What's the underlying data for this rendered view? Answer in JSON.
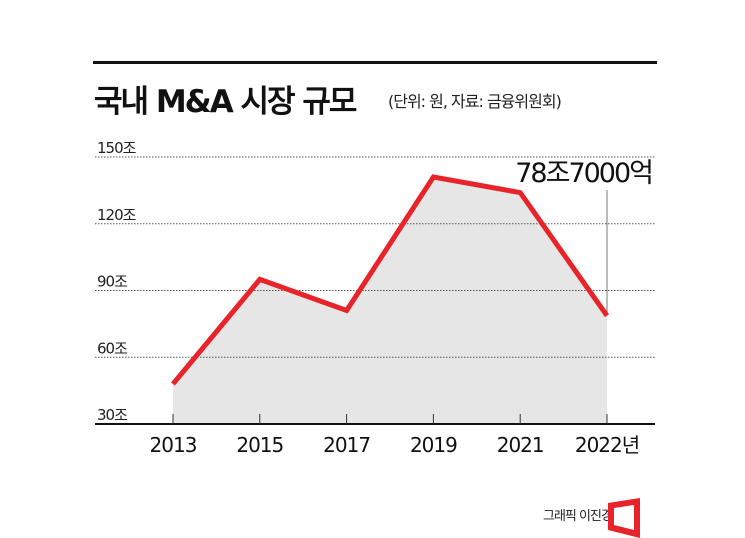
{
  "title": "국내 M&A 시장 규모",
  "subtitle": "(단위: 원, 자료: 금융위원회)",
  "credit": "그래픽 이진경",
  "chart_data": {
    "type": "area",
    "categories": [
      "2013",
      "2015",
      "2017",
      "2019",
      "2021",
      "2022년"
    ],
    "values": [
      48,
      95,
      81,
      141,
      134,
      78.7
    ],
    "yticks": [
      30,
      60,
      90,
      120,
      150
    ],
    "ytick_labels": [
      "30조",
      "60조",
      "90조",
      "120조",
      "150조"
    ],
    "ylim": [
      30,
      150
    ],
    "annotation": "78조7000억",
    "grid": true,
    "line_color": "#e8232a",
    "fill_color": "#e6e6e6"
  }
}
